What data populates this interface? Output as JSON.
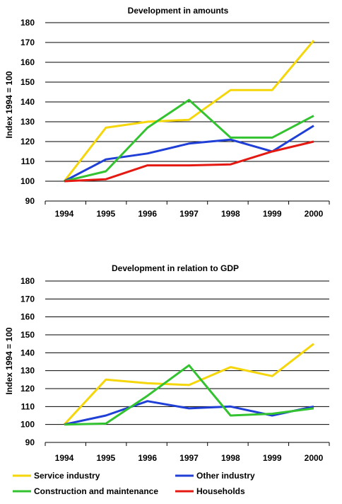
{
  "colors": {
    "service": "#f5d60a",
    "other": "#1f3fd6",
    "construction": "#33c230",
    "households": "#e41a12"
  },
  "legend": [
    {
      "key": "service",
      "label": "Service industry"
    },
    {
      "key": "other",
      "label": "Other industry"
    },
    {
      "key": "construction",
      "label": "Construction and maintenance"
    },
    {
      "key": "households",
      "label": "Households"
    }
  ],
  "chart_data": [
    {
      "type": "line",
      "title": "Development in amounts",
      "ylabel": "Index 1994 = 100",
      "xlabel": "",
      "x": [
        "1994",
        "1995",
        "1996",
        "1997",
        "1998",
        "1999",
        "2000"
      ],
      "ylim": [
        90,
        180
      ],
      "yticks": [
        "90",
        "100",
        "110",
        "120",
        "130",
        "140",
        "150",
        "160",
        "170",
        "180"
      ],
      "grid": true,
      "series": [
        {
          "name": "Service industry",
          "key": "service",
          "values": [
            100,
            127,
            130,
            131,
            146,
            146,
            171
          ]
        },
        {
          "name": "Other industry",
          "key": "other",
          "values": [
            100,
            111,
            114,
            119,
            121,
            115,
            128
          ]
        },
        {
          "name": "Construction and maintenance",
          "key": "construction",
          "values": [
            100,
            105,
            127,
            141,
            122,
            122,
            133
          ]
        },
        {
          "name": "Households",
          "key": "households",
          "values": [
            100,
            101,
            108,
            108,
            108.5,
            115,
            120
          ]
        }
      ]
    },
    {
      "type": "line",
      "title": "Development in relation to GDP",
      "ylabel": "Index 1994 = 100",
      "xlabel": "",
      "x": [
        "1994",
        "1995",
        "1996",
        "1997",
        "1998",
        "1999",
        "2000"
      ],
      "ylim": [
        90,
        180
      ],
      "yticks": [
        "90",
        "100",
        "110",
        "120",
        "130",
        "140",
        "150",
        "160",
        "170",
        "180"
      ],
      "grid": true,
      "series": [
        {
          "name": "Service industry",
          "key": "service",
          "values": [
            100,
            125,
            123,
            122,
            132,
            127,
            145
          ]
        },
        {
          "name": "Other industry",
          "key": "other",
          "values": [
            100,
            105,
            113,
            109,
            110,
            105,
            110
          ]
        },
        {
          "name": "Construction and maintenance",
          "key": "construction",
          "values": [
            100,
            100.5,
            116,
            133,
            105,
            106,
            109
          ]
        }
      ]
    }
  ]
}
